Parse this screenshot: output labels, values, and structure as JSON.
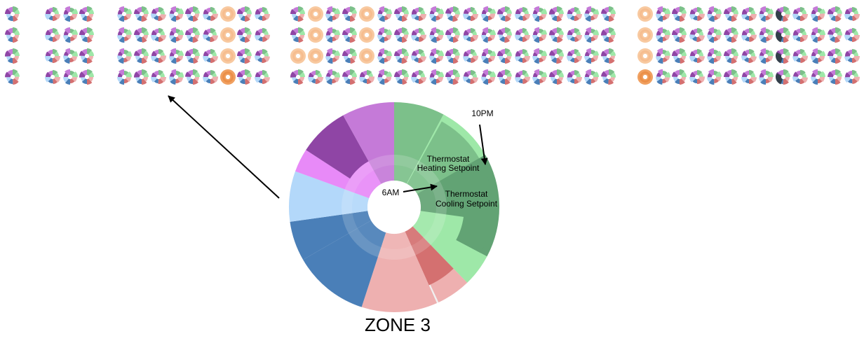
{
  "zone_title": "ZONE 3",
  "annotations": {
    "time_start": "6AM",
    "time_end": "10PM",
    "heating_line1": "Thermostat",
    "heating_line2": "Heating Setpoint",
    "cooling_line1": "Thermostat",
    "cooling_line2": "Cooling Setpoint"
  },
  "colors": {
    "green_light": "#9ee8a8",
    "green_mid": "#7cc08a",
    "green_dark": "#62a374",
    "red_light": "#eeb0b0",
    "red_dark": "#d47070",
    "blue_dark": "#4a7fb8",
    "blue_light": "#b3d8fa",
    "purple_dark": "#8f45a5",
    "purple_light": "#c57ad8",
    "pink": "#e88af8",
    "orange": "#f8c9a0",
    "orange_dark": "#e8883e"
  },
  "thumbnail_groups": [
    {
      "name": "group-1",
      "columns": 1,
      "rows": 4
    },
    {
      "name": "group-2",
      "columns": 3,
      "rows": 4
    },
    {
      "name": "group-3",
      "columns": 9,
      "rows": 4
    },
    {
      "name": "group-4",
      "columns": 19,
      "rows": 4
    },
    {
      "name": "group-5",
      "columns": 13,
      "rows": 4
    }
  ]
}
